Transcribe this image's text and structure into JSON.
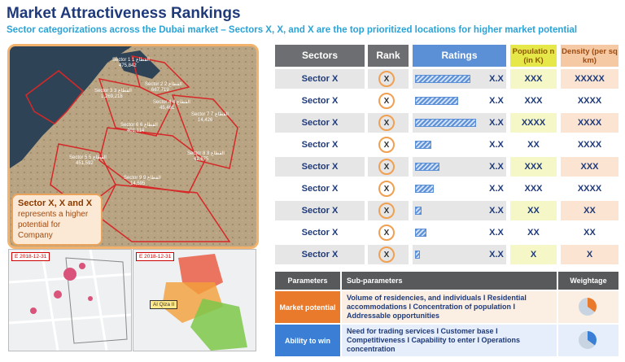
{
  "header": {
    "title": "Market Attractiveness Rankings",
    "subtitle": "Sector categorizations across the Dubai market – Sectors X, X, and X are the top prioritized locations for higher market potential"
  },
  "map": {
    "labels": [
      {
        "name": "Sector 1 القطاع 1",
        "value": "475,842"
      },
      {
        "name": "Sector 2 القطاع 2",
        "value": "667,719"
      },
      {
        "name": "Sector 3 القطاع 3",
        "value": "1,269,218"
      },
      {
        "name": "Sector 4 القطاع 4",
        "value": "45,461"
      },
      {
        "name": "Sector 6 القطاع 6",
        "value": "401,114"
      },
      {
        "name": "Sector 7 القطاع 7",
        "value": "14,426"
      },
      {
        "name": "Sector 8 القطاع 8",
        "value": "42,675"
      },
      {
        "name": "Sector 5 القطاع 5",
        "value": "451,592"
      },
      {
        "name": "Sector 9 القطاع 9",
        "value": "14,595"
      }
    ],
    "callout_bold": "Sector X, X and X",
    "callout_text": "represents a higher potential for Company",
    "date_left": "E 2018-12-31",
    "date_right": "E 2018-12-31",
    "popup": "Al Qiza II"
  },
  "rankings": {
    "columns": [
      "Sectors",
      "Rank",
      "Ratings",
      "Populatio n (in K)",
      "Density (per sq km)"
    ],
    "rows": [
      {
        "sector": "Sector X",
        "rank": "X",
        "bar": 76,
        "rating": "X.X",
        "population": "XXX",
        "density": "XXXXX"
      },
      {
        "sector": "Sector X",
        "rank": "X",
        "bar": 59,
        "rating": "X.X",
        "population": "XXX",
        "density": "XXXX"
      },
      {
        "sector": "Sector X",
        "rank": "X",
        "bar": 83,
        "rating": "X.X",
        "population": "XXXX",
        "density": "XXXX"
      },
      {
        "sector": "Sector X",
        "rank": "X",
        "bar": 22,
        "rating": "X.X",
        "population": "XX",
        "density": "XXXX"
      },
      {
        "sector": "Sector X",
        "rank": "X",
        "bar": 33,
        "rating": "X.X",
        "population": "XXX",
        "density": "XXX"
      },
      {
        "sector": "Sector X",
        "rank": "X",
        "bar": 26,
        "rating": "X.X",
        "population": "XXX",
        "density": "XXXX"
      },
      {
        "sector": "Sector X",
        "rank": "X",
        "bar": 9,
        "rating": "X.X",
        "population": "XX",
        "density": "XX"
      },
      {
        "sector": "Sector X",
        "rank": "X",
        "bar": 16,
        "rating": "X.X",
        "population": "XX",
        "density": "XX"
      },
      {
        "sector": "Sector X",
        "rank": "X",
        "bar": 7,
        "rating": "X.X",
        "population": "X",
        "density": "X"
      }
    ]
  },
  "parameters": {
    "columns": [
      "Parameters",
      "Sub-parameters",
      "Weightage"
    ],
    "rows": [
      {
        "name": "Market potential",
        "sub": "Volume of residencies, and individuals I  Residential accommodations I Concentration of population I Addressable opportunities"
      },
      {
        "name": "Ability to win",
        "sub": "Need for trading services I Customer base I Competitiveness I Capability to enter I Operations concentration"
      }
    ]
  }
}
